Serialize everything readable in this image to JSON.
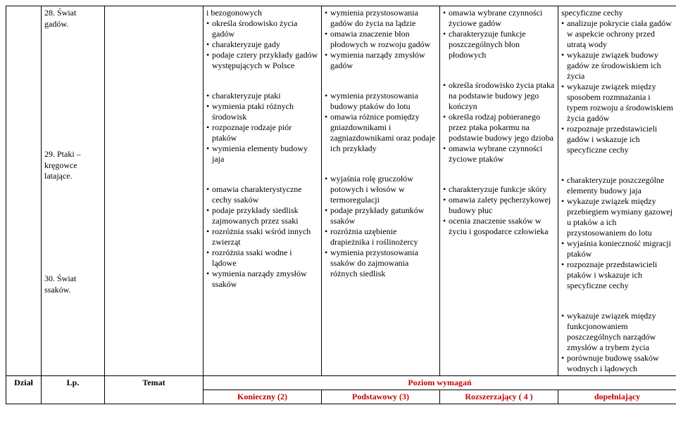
{
  "rows": [
    {
      "topic": "28. Świat gadów.",
      "c1": [
        "i bezogonowych",
        "określa środowisko życia gadów",
        "charakteryzuje gady",
        "podaje cztery przykłady gadów występujących w Polsce"
      ],
      "c2": [
        "wymienia przystosowania gadów do życia na lądzie",
        "omawia znaczenie błon płodowych w rozwoju gadów",
        "wymienia narządy zmysłów gadów"
      ],
      "c3": [
        "omawia wybrane czynności życiowe gadów",
        "charakteryzuje funkcje poszczególnych błon płodowych"
      ],
      "c4": [
        "specyficzne cechy",
        "analizuje pokrycie ciała gadów w aspekcie ochrony przed utratą wody",
        "wykazuje związek budowy gadów ze środowiskiem ich życia",
        "wykazuje związek między sposobem rozmnażania i typem rozwoju a środowiskiem życia gadów",
        "rozpoznaje przedstawicieli gadów i wskazuje ich specyficzne cechy"
      ]
    },
    {
      "topic": "29. Ptaki – kręgowce latające.",
      "c1": [
        "charakteryzuje ptaki",
        "wymienia ptaki różnych środowisk",
        "rozpoznaje rodzaje piór ptaków",
        "wymienia elementy budowy jaja"
      ],
      "c2": [
        "wymienia przystosowania budowy ptaków do lotu",
        "omawia różnice pomiędzy gniazdownikami i zagniazdownikami oraz podaje ich przykłady"
      ],
      "c3": [
        "określa środowisko życia ptaka na podstawie budowy jego kończyn",
        "określa rodzaj pobieranego przez ptaka pokarmu na podstawie budowy jego dzioba",
        "omawia wybrane czynności życiowe ptaków"
      ],
      "c4": [
        "charakteryzuje poszczególne elementy budowy jaja",
        "wykazuje związek między przebiegiem wymiany gazowej u ptaków a ich przystosowaniem do lotu",
        "wyjaśnia konieczność migracji ptaków",
        "rozpoznaje przedstawicieli ptaków i wskazuje ich specyficzne cechy"
      ]
    },
    {
      "topic": "30. Świat ssaków.",
      "c1": [
        "omawia charakterystyczne cechy ssaków",
        "podaje przykłady siedlisk zajmowanych przez ssaki",
        "rozróżnia ssaki wśród innych zwierząt",
        "rozróżnia ssaki wodne i lądowe",
        "wymienia narządy zmysłów ssaków"
      ],
      "c2": [
        "wyjaśnia rolę gruczołów potowych i włosów w termoregulacji",
        "podaje przykłady gatunków ssaków",
        "rozróżnia uzębienie drapieżnika i roślinożercy",
        "wymienia przystosowania ssaków do zajmowania różnych siedlisk"
      ],
      "c3": [
        "charakteryzuje funkcje skóry",
        "omawia zalety pęcherzykowej budowy płuc",
        "ocenia znaczenie ssaków w życiu i gospodarce człowieka"
      ],
      "c4": [
        "wykazuje związek między funkcjonowaniem poszczególnych narządów zmysłów a trybem życia",
        "porównuje budowę ssaków wodnych i lądowych"
      ]
    }
  ],
  "header": {
    "dzial": "Dział",
    "lp": "Lp.",
    "temat": "Temat",
    "poziom": "Poziom wymagań",
    "levels": [
      "Konieczny (2)",
      "Podstawowy (3)",
      "Rozszerzający ( 4 )",
      "dopełniający"
    ]
  }
}
